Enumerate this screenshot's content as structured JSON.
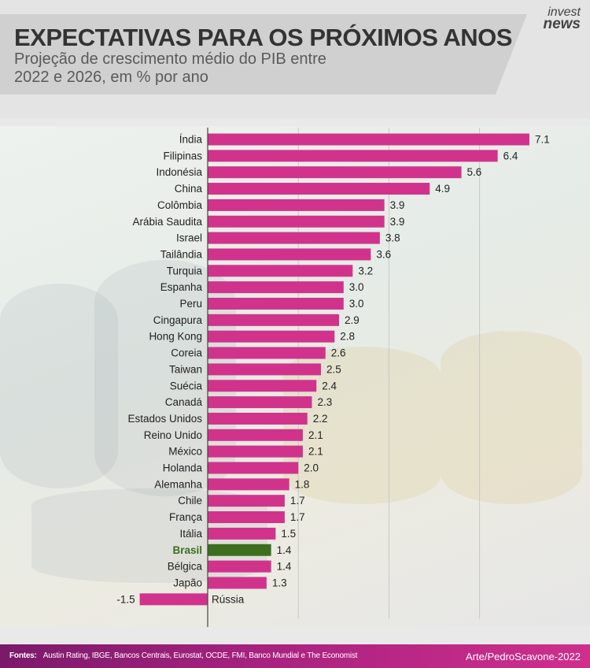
{
  "header": {
    "title": "EXPECTATIVAS PARA OS PRÓXIMOS ANOS",
    "subtitle": "Projeção de crescimento médio do PIB entre\n2022 e 2026, em % por ano",
    "logo_line1": "invest",
    "logo_line2": "news"
  },
  "colors": {
    "bar": "#d1338c",
    "highlight": "#3c6e1e",
    "label": "#222222",
    "highlight_label": "#3c6e1e"
  },
  "chart_data": {
    "type": "bar",
    "orientation": "horizontal",
    "title": "EXPECTATIVAS PARA OS PRÓXIMOS ANOS",
    "subtitle": "Projeção de crescimento médio do PIB entre 2022 e 2026, em % por ano",
    "categories": [
      "Índia",
      "Filipinas",
      "Indonésia",
      "China",
      "Colômbia",
      "Arábia Saudita",
      "Israel",
      "Tailândia",
      "Turquia",
      "Espanha",
      "Peru",
      "Cingapura",
      "Hong Kong",
      "Coreia",
      "Taiwan",
      "Suécia",
      "Canadá",
      "Estados Unidos",
      "Reino Unido",
      "México",
      "Holanda",
      "Alemanha",
      "Chile",
      "França",
      "Itália",
      "Brasil",
      "Bélgica",
      "Japão",
      "Rússia"
    ],
    "values": [
      7.1,
      6.4,
      5.6,
      4.9,
      3.9,
      3.9,
      3.8,
      3.6,
      3.2,
      3.0,
      3.0,
      2.9,
      2.8,
      2.6,
      2.5,
      2.4,
      2.3,
      2.2,
      2.1,
      2.1,
      2.0,
      1.8,
      1.7,
      1.7,
      1.5,
      1.4,
      1.4,
      1.3,
      -1.5
    ],
    "value_labels": [
      "7.1",
      "6.4",
      "5.6",
      "4.9",
      "3.9",
      "3.9",
      "3.8",
      "3.6",
      "3.2",
      "3.0",
      "3.0",
      "2.9",
      "2.8",
      "2.6",
      "2.5",
      "2.4",
      "2.3",
      "2.2",
      "2.1",
      "2.1",
      "2.0",
      "1.8",
      "1.7",
      "1.7",
      "1.5",
      "1.4",
      "1.4",
      "1.3",
      "-1.5"
    ],
    "highlight": "Brasil",
    "xlim": [
      -2,
      7.5
    ],
    "gridlines": [
      2,
      4,
      6
    ],
    "grid": true,
    "legend": "none",
    "xlabel": "",
    "ylabel": ""
  },
  "footer": {
    "sources_label": "Fontes:",
    "sources_text": "Austin Rating, IBGE, Bancos Centrais, Eurostat, OCDE, FMI, Banco Mundial e The Economist",
    "credit": "Arte/PedroScavone-2022"
  }
}
